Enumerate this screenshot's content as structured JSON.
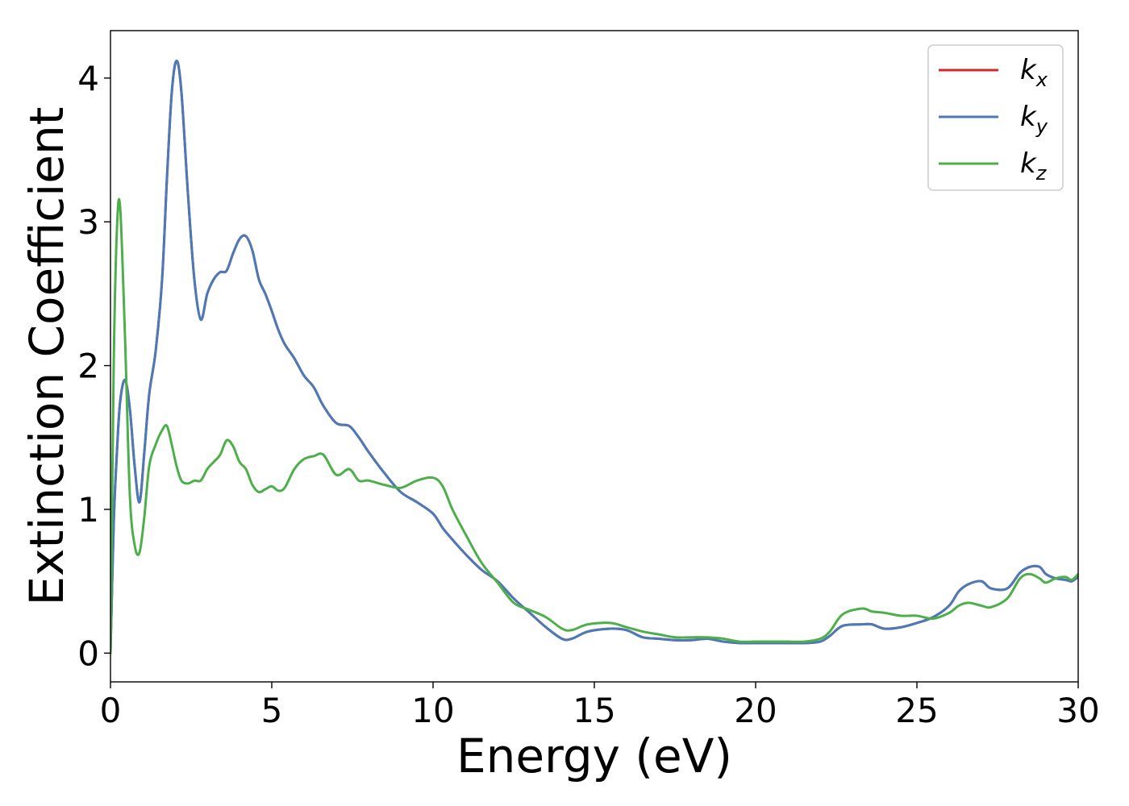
{
  "chart_data": {
    "type": "line",
    "xlabel": "Energy (eV)",
    "ylabel": "Extinction Coefficient",
    "xlim": [
      0,
      30
    ],
    "ylim": [
      -0.2,
      4.33
    ],
    "xticks": [
      0,
      5,
      10,
      15,
      20,
      25,
      30
    ],
    "yticks": [
      0,
      1,
      2,
      3,
      4
    ],
    "grid": false,
    "legend_position": "top-right",
    "series": [
      {
        "name": "k_x",
        "label_base": "k",
        "label_sub": "x",
        "color": "#d62728",
        "x": [
          0,
          0.1,
          0.2,
          0.3,
          0.45,
          0.6,
          0.75,
          0.9,
          1.05,
          1.2,
          1.4,
          1.6,
          1.75,
          1.9,
          2.05,
          2.2,
          2.4,
          2.6,
          2.8,
          3.0,
          3.2,
          3.4,
          3.6,
          3.8,
          4.0,
          4.2,
          4.4,
          4.6,
          4.8,
          5.0,
          5.2,
          5.4,
          5.7,
          6.0,
          6.3,
          6.6,
          7.0,
          7.4,
          7.7,
          8.0,
          8.5,
          9.0,
          9.5,
          10.0,
          10.3,
          10.6,
          11.0,
          11.5,
          12.0,
          12.5,
          13.0,
          13.5,
          14.0,
          14.3,
          14.8,
          15.5,
          16.0,
          16.5,
          17.0,
          17.5,
          18.0,
          18.5,
          19.0,
          19.5,
          20.0,
          20.5,
          21.0,
          21.5,
          22.0,
          22.3,
          22.7,
          23.3,
          23.6,
          24.0,
          24.5,
          25.0,
          25.5,
          26.0,
          26.3,
          26.6,
          27.0,
          27.3,
          27.8,
          28.2,
          28.5,
          28.8,
          29.0,
          29.3,
          29.6,
          29.8,
          30.0
        ],
        "y": [
          0,
          0.9,
          1.4,
          1.75,
          1.9,
          1.7,
          1.3,
          1.05,
          1.4,
          1.8,
          2.1,
          2.6,
          3.3,
          3.9,
          4.12,
          3.9,
          3.2,
          2.6,
          2.32,
          2.5,
          2.6,
          2.65,
          2.66,
          2.78,
          2.88,
          2.9,
          2.8,
          2.6,
          2.5,
          2.38,
          2.25,
          2.15,
          2.05,
          1.93,
          1.85,
          1.72,
          1.6,
          1.58,
          1.5,
          1.4,
          1.25,
          1.12,
          1.05,
          0.97,
          0.87,
          0.79,
          0.69,
          0.58,
          0.5,
          0.38,
          0.28,
          0.18,
          0.1,
          0.1,
          0.15,
          0.17,
          0.16,
          0.11,
          0.1,
          0.09,
          0.09,
          0.1,
          0.08,
          0.07,
          0.07,
          0.07,
          0.07,
          0.07,
          0.08,
          0.12,
          0.19,
          0.2,
          0.2,
          0.17,
          0.18,
          0.21,
          0.25,
          0.33,
          0.43,
          0.48,
          0.5,
          0.45,
          0.45,
          0.56,
          0.6,
          0.6,
          0.55,
          0.52,
          0.51,
          0.5,
          0.53
        ]
      },
      {
        "name": "k_y",
        "label_base": "k",
        "label_sub": "y",
        "color": "#4a7ab8",
        "x": [
          0,
          0.1,
          0.2,
          0.3,
          0.45,
          0.6,
          0.75,
          0.9,
          1.05,
          1.2,
          1.4,
          1.6,
          1.75,
          1.9,
          2.05,
          2.2,
          2.4,
          2.6,
          2.8,
          3.0,
          3.2,
          3.4,
          3.6,
          3.8,
          4.0,
          4.2,
          4.4,
          4.6,
          4.8,
          5.0,
          5.2,
          5.4,
          5.7,
          6.0,
          6.3,
          6.6,
          7.0,
          7.4,
          7.7,
          8.0,
          8.5,
          9.0,
          9.5,
          10.0,
          10.3,
          10.6,
          11.0,
          11.5,
          12.0,
          12.5,
          13.0,
          13.5,
          14.0,
          14.3,
          14.8,
          15.5,
          16.0,
          16.5,
          17.0,
          17.5,
          18.0,
          18.5,
          19.0,
          19.5,
          20.0,
          20.5,
          21.0,
          21.5,
          22.0,
          22.3,
          22.7,
          23.3,
          23.6,
          24.0,
          24.5,
          25.0,
          25.5,
          26.0,
          26.3,
          26.6,
          27.0,
          27.3,
          27.8,
          28.2,
          28.5,
          28.8,
          29.0,
          29.3,
          29.6,
          29.8,
          30.0
        ],
        "y": [
          0,
          0.9,
          1.4,
          1.75,
          1.9,
          1.7,
          1.3,
          1.05,
          1.4,
          1.8,
          2.1,
          2.6,
          3.3,
          3.9,
          4.12,
          3.9,
          3.2,
          2.6,
          2.32,
          2.5,
          2.6,
          2.65,
          2.66,
          2.78,
          2.88,
          2.9,
          2.8,
          2.6,
          2.5,
          2.38,
          2.25,
          2.15,
          2.05,
          1.93,
          1.85,
          1.72,
          1.6,
          1.58,
          1.5,
          1.4,
          1.25,
          1.12,
          1.05,
          0.97,
          0.87,
          0.79,
          0.69,
          0.58,
          0.5,
          0.38,
          0.28,
          0.18,
          0.1,
          0.1,
          0.15,
          0.17,
          0.16,
          0.11,
          0.1,
          0.09,
          0.09,
          0.1,
          0.08,
          0.07,
          0.07,
          0.07,
          0.07,
          0.07,
          0.08,
          0.12,
          0.19,
          0.2,
          0.2,
          0.17,
          0.18,
          0.21,
          0.25,
          0.33,
          0.43,
          0.48,
          0.5,
          0.45,
          0.45,
          0.56,
          0.6,
          0.6,
          0.55,
          0.52,
          0.51,
          0.5,
          0.53
        ]
      },
      {
        "name": "k_z",
        "label_base": "k",
        "label_sub": "z",
        "color": "#4daf4a",
        "x": [
          0,
          0.1,
          0.2,
          0.3,
          0.45,
          0.6,
          0.75,
          0.9,
          1.05,
          1.2,
          1.4,
          1.6,
          1.75,
          1.9,
          2.05,
          2.2,
          2.4,
          2.6,
          2.8,
          3.0,
          3.2,
          3.4,
          3.6,
          3.8,
          4.0,
          4.2,
          4.4,
          4.6,
          4.8,
          5.0,
          5.2,
          5.4,
          5.7,
          6.0,
          6.3,
          6.6,
          7.0,
          7.4,
          7.7,
          8.0,
          8.5,
          9.0,
          9.5,
          10.0,
          10.3,
          10.6,
          11.0,
          11.5,
          12.0,
          12.5,
          13.0,
          13.5,
          14.0,
          14.3,
          14.8,
          15.5,
          16.0,
          16.5,
          17.0,
          17.5,
          18.0,
          18.5,
          19.0,
          19.5,
          20.0,
          20.5,
          21.0,
          21.5,
          22.0,
          22.3,
          22.7,
          23.3,
          23.6,
          24.0,
          24.5,
          25.0,
          25.5,
          26.0,
          26.3,
          26.6,
          27.0,
          27.3,
          27.8,
          28.2,
          28.5,
          28.8,
          29.0,
          29.3,
          29.6,
          29.8,
          30.0
        ],
        "y": [
          0,
          2.0,
          2.95,
          3.1,
          2.2,
          1.1,
          0.75,
          0.7,
          0.95,
          1.3,
          1.45,
          1.55,
          1.58,
          1.45,
          1.3,
          1.2,
          1.18,
          1.2,
          1.2,
          1.28,
          1.33,
          1.38,
          1.48,
          1.44,
          1.33,
          1.28,
          1.17,
          1.12,
          1.14,
          1.16,
          1.13,
          1.15,
          1.28,
          1.35,
          1.37,
          1.38,
          1.24,
          1.28,
          1.2,
          1.2,
          1.17,
          1.15,
          1.2,
          1.22,
          1.16,
          1.0,
          0.83,
          0.63,
          0.49,
          0.35,
          0.3,
          0.25,
          0.17,
          0.16,
          0.2,
          0.21,
          0.18,
          0.15,
          0.13,
          0.11,
          0.11,
          0.11,
          0.1,
          0.08,
          0.08,
          0.08,
          0.08,
          0.08,
          0.1,
          0.15,
          0.27,
          0.31,
          0.29,
          0.28,
          0.26,
          0.26,
          0.24,
          0.28,
          0.33,
          0.35,
          0.33,
          0.32,
          0.38,
          0.52,
          0.55,
          0.52,
          0.49,
          0.52,
          0.53,
          0.51,
          0.55
        ]
      }
    ]
  }
}
